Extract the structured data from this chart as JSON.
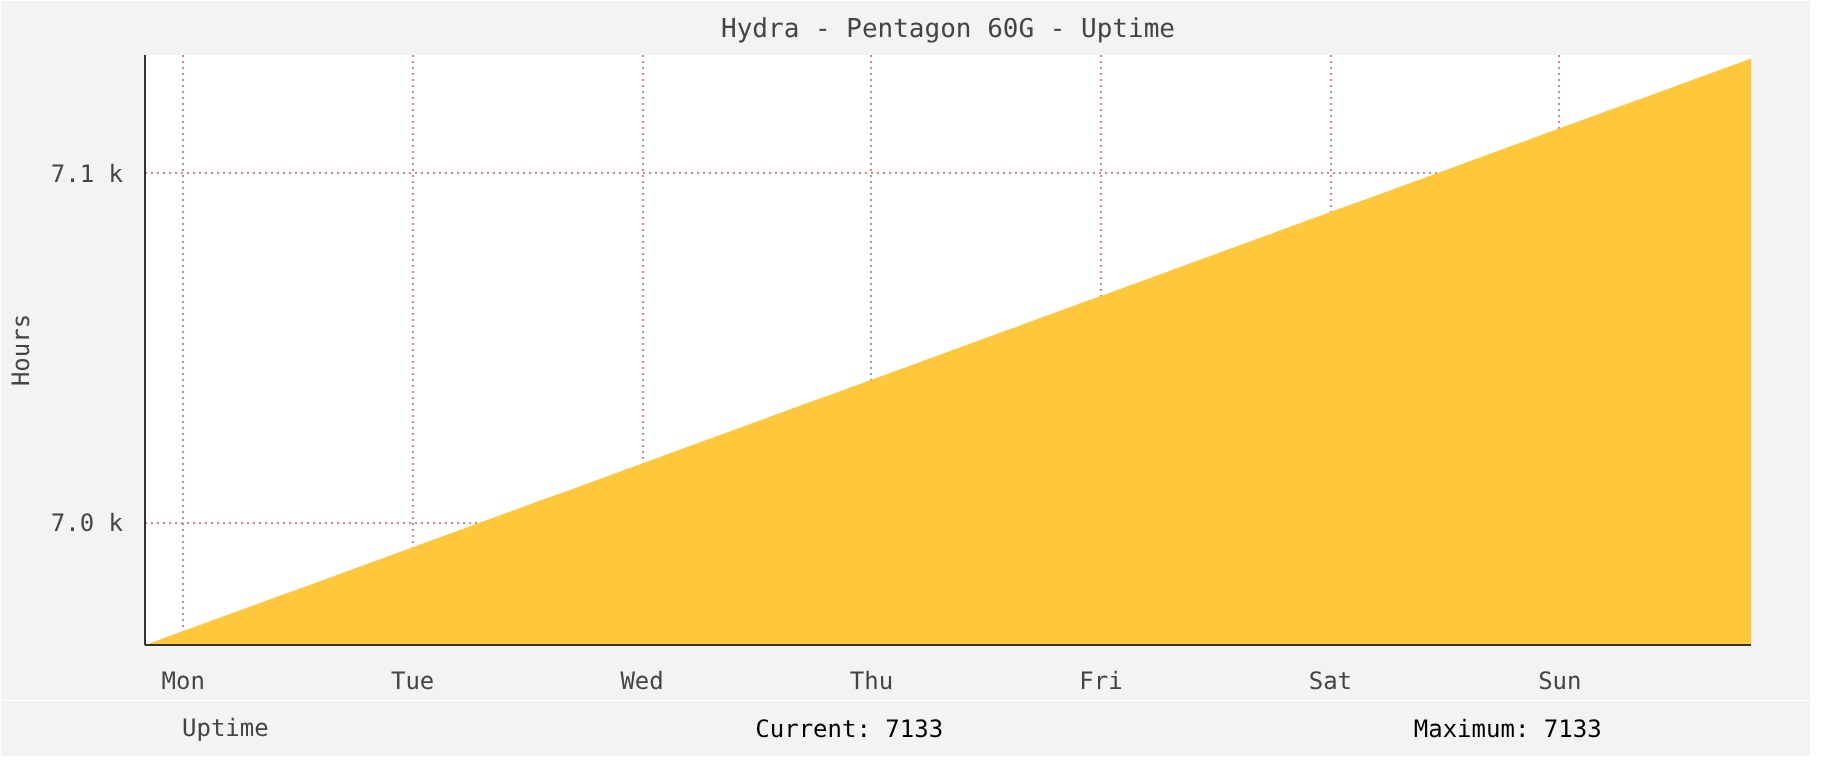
{
  "chart_data": {
    "type": "area",
    "title": "Hydra - Pentagon 60G - Uptime",
    "ylabel": "Hours",
    "categories": [
      null,
      null,
      "Mon",
      null,
      null,
      null,
      null,
      null,
      null,
      null,
      null,
      null,
      null,
      null,
      "Tue",
      null,
      null,
      null,
      null,
      null,
      null,
      null,
      null,
      null,
      null,
      null,
      "Wed",
      null,
      null,
      null,
      null,
      null,
      null,
      null,
      null,
      null,
      null,
      null,
      "Thu",
      null,
      null,
      null,
      null,
      null,
      null,
      null,
      null,
      null,
      null,
      null,
      "Fri",
      null,
      null,
      null,
      null,
      null,
      null,
      null,
      null,
      null,
      null,
      null,
      "Sat",
      null,
      null,
      null,
      null,
      null,
      null,
      null,
      null,
      null,
      null,
      null,
      "Sun",
      null,
      null,
      null,
      null,
      null,
      null,
      null,
      null,
      null,
      null
    ],
    "series": [
      {
        "name": "Uptime",
        "color": "#ffc73b",
        "values": [
          6965,
          6967,
          6969,
          6971,
          6973,
          6975,
          6977,
          6979,
          6981,
          6983,
          6985,
          6987,
          6989,
          6991,
          6993,
          6995,
          6997,
          6999,
          7001,
          7003,
          7005,
          7007,
          7009,
          7011,
          7013,
          7015,
          7017,
          7019,
          7021,
          7023,
          7025,
          7027,
          7029,
          7031,
          7033,
          7035,
          7037,
          7039,
          7041,
          7043,
          7045,
          7047,
          7049,
          7051,
          7053,
          7055,
          7057,
          7059,
          7061,
          7063,
          7065,
          7067,
          7069,
          7071,
          7073,
          7075,
          7077,
          7079,
          7081,
          7083,
          7085,
          7087,
          7089,
          7091,
          7093,
          7095,
          7097,
          7099,
          7101,
          7103,
          7105,
          7107,
          7109,
          7111,
          7113,
          7115,
          7117,
          7119,
          7121,
          7123,
          7125,
          7127,
          7129,
          7131,
          7133
        ]
      }
    ],
    "ylim": [
      6965,
      7134
    ],
    "yticks": [
      {
        "value": 7000,
        "label": "7.0 k"
      },
      {
        "value": 7100,
        "label": "7.1 k"
      }
    ],
    "grid": true,
    "legend": "bottom left",
    "annotations": [
      "Current:    7133",
      "Maximum:    7133"
    ]
  }
}
